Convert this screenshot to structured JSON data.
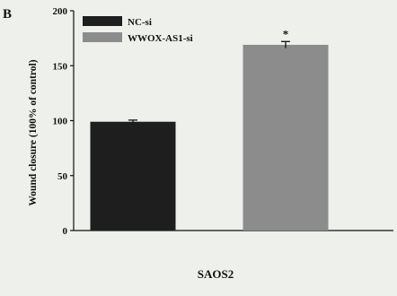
{
  "panel_label": "B",
  "chart_data": {
    "type": "bar",
    "categories": [
      "SAOS2"
    ],
    "series": [
      {
        "name": "NC-si",
        "values": [
          99
        ],
        "errors": [
          1.5
        ],
        "color": "#1e1e1e"
      },
      {
        "name": "WWOX-AS1-si",
        "values": [
          169
        ],
        "errors": [
          3
        ],
        "color": "#8c8c8c"
      }
    ],
    "xlabel": "SAOS2",
    "ylabel": "Wound closure (100% of control)",
    "ylim": [
      0,
      200
    ],
    "yticks": [
      "0",
      "50",
      "100",
      "150",
      "200"
    ],
    "annotations": [
      {
        "series": 1,
        "text": "*"
      }
    ],
    "legend": "top-left",
    "grid": false
  }
}
